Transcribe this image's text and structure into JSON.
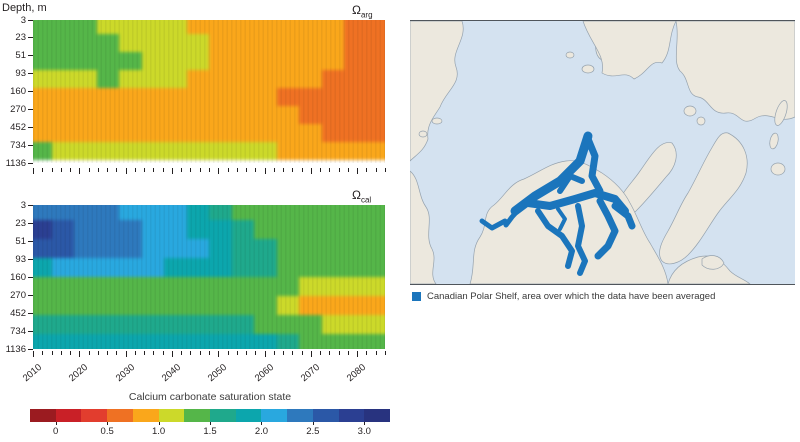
{
  "figure": {
    "depth_axis_title": "Depth, m",
    "x_decade_labels": [
      "2010",
      "2020",
      "2030",
      "2040",
      "2050",
      "2060",
      "2070",
      "2080"
    ],
    "x_range": [
      2010,
      2086
    ],
    "minor_tick_step_years": 2
  },
  "chart_data": [
    {
      "type": "heatmap",
      "title": "Omega_aragonite",
      "symbol": "Ω",
      "subscript": "arg",
      "x_years": [
        2010,
        2015,
        2020,
        2025,
        2030,
        2035,
        2040,
        2045,
        2050,
        2055,
        2060,
        2065,
        2070,
        2075,
        2080,
        2085
      ],
      "depth_tick_labels": [
        "3",
        "23",
        "51",
        "93",
        "160",
        "270",
        "452",
        "734",
        "1136"
      ],
      "row_depths_m": [
        3,
        23,
        51,
        93,
        160,
        270,
        452,
        734
      ],
      "bottom_white_strip": true,
      "values": [
        [
          1.35,
          1.35,
          1.35,
          1.2,
          1.1,
          1.1,
          1.1,
          0.95,
          0.9,
          0.9,
          0.9,
          0.9,
          0.9,
          0.9,
          0.65,
          0.65
        ],
        [
          1.35,
          1.35,
          1.35,
          1.35,
          1.2,
          1.1,
          1.1,
          1.1,
          0.9,
          0.9,
          0.9,
          0.9,
          0.9,
          0.9,
          0.65,
          0.65
        ],
        [
          1.4,
          1.35,
          1.35,
          1.35,
          1.35,
          1.2,
          1.1,
          1.1,
          0.95,
          0.9,
          0.9,
          0.9,
          0.9,
          0.9,
          0.65,
          0.65
        ],
        [
          1.1,
          1.1,
          1.2,
          1.35,
          1.2,
          1.1,
          1.1,
          0.95,
          0.9,
          0.9,
          0.9,
          0.9,
          0.9,
          0.65,
          0.65,
          0.65
        ],
        [
          0.9,
          0.9,
          0.9,
          0.9,
          0.9,
          0.9,
          0.9,
          0.9,
          0.9,
          0.9,
          0.9,
          0.65,
          0.65,
          0.65,
          0.65,
          0.65
        ],
        [
          0.9,
          0.9,
          0.9,
          0.9,
          0.9,
          0.9,
          0.9,
          0.9,
          0.9,
          0.9,
          0.9,
          0.9,
          0.65,
          0.65,
          0.65,
          0.65
        ],
        [
          0.9,
          0.9,
          0.9,
          0.9,
          0.9,
          0.9,
          0.9,
          0.9,
          0.9,
          0.9,
          0.9,
          0.9,
          0.9,
          0.65,
          0.65,
          0.65
        ],
        [
          1.3,
          1.1,
          1.1,
          1.1,
          1.1,
          1.1,
          1.1,
          1.1,
          1.1,
          1.1,
          1.1,
          0.9,
          0.9,
          0.9,
          0.9,
          0.9
        ]
      ]
    },
    {
      "type": "heatmap",
      "title": "Omega_calcite",
      "symbol": "Ω",
      "subscript": "cal",
      "x_years": [
        2010,
        2015,
        2020,
        2025,
        2030,
        2035,
        2040,
        2045,
        2050,
        2055,
        2060,
        2065,
        2070,
        2075,
        2080,
        2085
      ],
      "depth_tick_labels": [
        "3",
        "23",
        "51",
        "93",
        "160",
        "270",
        "452",
        "734",
        "1136"
      ],
      "row_depths_m": [
        3,
        23,
        51,
        93,
        160,
        270,
        452,
        734
      ],
      "bottom_white_strip": false,
      "values": [
        [
          2.4,
          2.4,
          2.3,
          2.3,
          2.2,
          2.2,
          2.1,
          1.9,
          1.6,
          1.45,
          1.45,
          1.45,
          1.4,
          1.4,
          1.3,
          1.3
        ],
        [
          2.8,
          2.6,
          2.4,
          2.4,
          2.3,
          2.2,
          2.2,
          1.9,
          1.9,
          1.6,
          1.45,
          1.45,
          1.4,
          1.4,
          1.3,
          1.3
        ],
        [
          2.7,
          2.6,
          2.4,
          2.4,
          2.3,
          2.2,
          2.2,
          2.1,
          1.9,
          1.6,
          1.6,
          1.45,
          1.4,
          1.4,
          1.3,
          1.3
        ],
        [
          1.9,
          2.1,
          2.2,
          2.2,
          2.2,
          2.2,
          1.9,
          1.9,
          1.9,
          1.6,
          1.6,
          1.45,
          1.4,
          1.3,
          1.3,
          1.3
        ],
        [
          1.45,
          1.45,
          1.45,
          1.45,
          1.45,
          1.45,
          1.45,
          1.45,
          1.45,
          1.45,
          1.45,
          1.3,
          1.1,
          1.1,
          1.1,
          1.1
        ],
        [
          1.45,
          1.45,
          1.45,
          1.45,
          1.45,
          1.45,
          1.45,
          1.45,
          1.45,
          1.45,
          1.3,
          1.1,
          0.9,
          0.9,
          0.9,
          0.9
        ],
        [
          1.6,
          1.6,
          1.6,
          1.6,
          1.6,
          1.6,
          1.6,
          1.6,
          1.6,
          1.6,
          1.45,
          1.45,
          1.3,
          1.1,
          1.1,
          1.1
        ],
        [
          1.9,
          1.9,
          1.9,
          1.9,
          1.9,
          1.9,
          1.9,
          1.9,
          1.9,
          1.9,
          1.9,
          1.6,
          1.45,
          1.45,
          1.45,
          1.45
        ]
      ]
    },
    {
      "type": "colorbar",
      "title": "Calcium carbonate saturation state",
      "tick_labels": [
        "0",
        "0.5",
        "1.0",
        "1.5",
        "2.0",
        "2.5",
        "3.0"
      ],
      "tick_values": [
        0,
        0.5,
        1.0,
        1.5,
        2.0,
        2.5,
        3.0
      ],
      "bin_edges": [
        -0.25,
        0,
        0.25,
        0.5,
        0.75,
        1.0,
        1.25,
        1.5,
        1.75,
        2.0,
        2.25,
        2.5,
        2.75,
        3.0,
        3.25
      ],
      "colors": [
        "#9b1b20",
        "#c92027",
        "#e23d2e",
        "#ef7123",
        "#faa71b",
        "#ccd92a",
        "#55b649",
        "#1fa98c",
        "#0ca6ad",
        "#29a8df",
        "#2e79bd",
        "#2b58a7",
        "#2b3f92",
        "#28337f"
      ]
    }
  ],
  "map": {
    "legend_label": "Canadian Polar Shelf, area over which the data have been averaged",
    "colors": {
      "ocean": "#d4e2f0",
      "land": "#ece8de",
      "coast": "#95a2ae",
      "highlight": "#1b75bc",
      "frame": "#4f555b"
    }
  }
}
